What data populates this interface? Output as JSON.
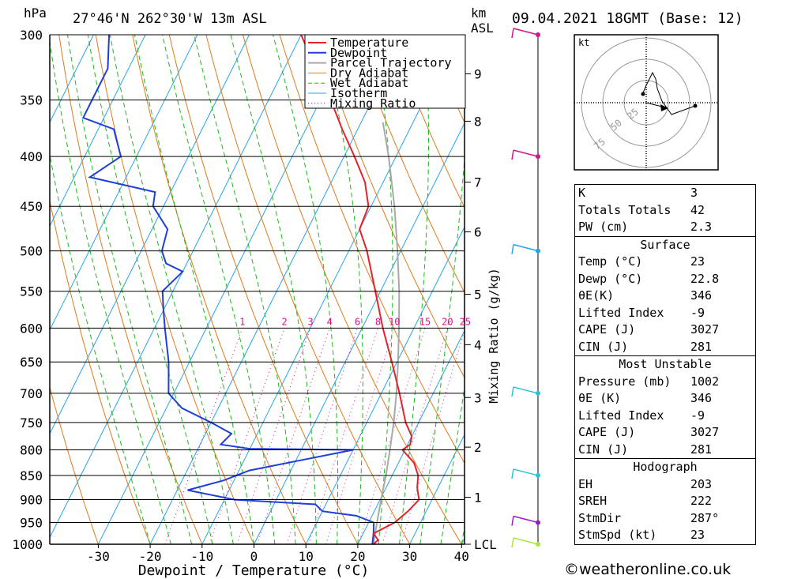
{
  "header": {
    "pressure_unit": "hPa",
    "location": "27°46'N  262°30'W  13m  ASL",
    "km_unit": "km",
    "asl": "ASL",
    "datetime": "09.04.2021  18GMT  (Base: 12)"
  },
  "chart_data": {
    "type": "skew-t",
    "xlabel": "Dewpoint / Temperature (°C)",
    "ylabel": "hPa",
    "y2label": "Mixing Ratio (g/kg)",
    "pressure_levels": [
      300,
      350,
      400,
      450,
      500,
      550,
      600,
      650,
      700,
      750,
      800,
      850,
      900,
      950,
      1000
    ],
    "temp_ticks": [
      -30,
      -20,
      -10,
      0,
      10,
      20,
      30,
      40
    ],
    "km_ticks": [
      {
        "label": "9",
        "p": 329
      },
      {
        "label": "8",
        "p": 368
      },
      {
        "label": "7",
        "p": 425
      },
      {
        "label": "6",
        "p": 478
      },
      {
        "label": "5",
        "p": 554
      },
      {
        "label": "4",
        "p": 624
      },
      {
        "label": "3",
        "p": 707
      },
      {
        "label": "2",
        "p": 795
      },
      {
        "label": "1",
        "p": 895
      },
      {
        "label": "LCL",
        "p": 1000
      }
    ],
    "mixing_ratio_labels": [
      "1",
      "2",
      "3",
      "4",
      "6",
      "8",
      "10",
      "15",
      "20",
      "25"
    ],
    "legend": [
      "Temperature",
      "Dewpoint",
      "Parcel Trajectory",
      "Dry Adiabat",
      "Wet Adiabat",
      "Isotherm",
      "Mixing Ratio"
    ],
    "colors": {
      "temperature": "#e8202a",
      "dewpoint": "#1f3fd8",
      "parcel": "#a9a9a9",
      "dry_adiabat": "#e07a1c",
      "wet_adiabat": "#1eb81e",
      "isotherm": "#26a4e8",
      "mixing_ratio": "#d4148a"
    },
    "temperature": [
      {
        "p": 1000,
        "t": 23
      },
      {
        "p": 990,
        "t": 23.5
      },
      {
        "p": 975,
        "t": 22
      },
      {
        "p": 950,
        "t": 25
      },
      {
        "p": 925,
        "t": 26.5
      },
      {
        "p": 900,
        "t": 27.5
      },
      {
        "p": 875,
        "t": 26
      },
      {
        "p": 850,
        "t": 25
      },
      {
        "p": 825,
        "t": 23
      },
      {
        "p": 800,
        "t": 19.5
      },
      {
        "p": 790,
        "t": 20.5
      },
      {
        "p": 775,
        "t": 20
      },
      {
        "p": 750,
        "t": 17.5
      },
      {
        "p": 700,
        "t": 13.5
      },
      {
        "p": 650,
        "t": 9
      },
      {
        "p": 600,
        "t": 4
      },
      {
        "p": 550,
        "t": -1
      },
      {
        "p": 500,
        "t": -6.5
      },
      {
        "p": 475,
        "t": -10
      },
      {
        "p": 450,
        "t": -10.5
      },
      {
        "p": 425,
        "t": -13.5
      },
      {
        "p": 400,
        "t": -18
      },
      {
        "p": 375,
        "t": -23
      },
      {
        "p": 350,
        "t": -28
      },
      {
        "p": 325,
        "t": -34
      },
      {
        "p": 300,
        "t": -40
      }
    ],
    "dewpoint": [
      {
        "p": 1000,
        "t": 22.8
      },
      {
        "p": 975,
        "t": 22
      },
      {
        "p": 950,
        "t": 21
      },
      {
        "p": 935,
        "t": 17
      },
      {
        "p": 925,
        "t": 10
      },
      {
        "p": 910,
        "t": 8
      },
      {
        "p": 900,
        "t": -8
      },
      {
        "p": 880,
        "t": -18
      },
      {
        "p": 860,
        "t": -12
      },
      {
        "p": 840,
        "t": -8
      },
      {
        "p": 800,
        "t": 10
      },
      {
        "p": 798,
        "t": -10
      },
      {
        "p": 790,
        "t": -16
      },
      {
        "p": 770,
        "t": -15
      },
      {
        "p": 750,
        "t": -20
      },
      {
        "p": 725,
        "t": -27
      },
      {
        "p": 700,
        "t": -31
      },
      {
        "p": 650,
        "t": -34
      },
      {
        "p": 600,
        "t": -38
      },
      {
        "p": 575,
        "t": -40
      },
      {
        "p": 550,
        "t": -42
      },
      {
        "p": 525,
        "t": -40
      },
      {
        "p": 515,
        "t": -44
      },
      {
        "p": 500,
        "t": -46
      },
      {
        "p": 475,
        "t": -47
      },
      {
        "p": 450,
        "t": -52
      },
      {
        "p": 435,
        "t": -53
      },
      {
        "p": 420,
        "t": -67
      },
      {
        "p": 400,
        "t": -63
      },
      {
        "p": 375,
        "t": -67
      },
      {
        "p": 365,
        "t": -74
      },
      {
        "p": 350,
        "t": -74
      },
      {
        "p": 325,
        "t": -74
      },
      {
        "p": 300,
        "t": -77
      }
    ],
    "parcel": [
      {
        "p": 1000,
        "t": 23
      },
      {
        "p": 950,
        "t": 21.6
      },
      {
        "p": 900,
        "t": 20.2
      },
      {
        "p": 850,
        "t": 18.8
      },
      {
        "p": 800,
        "t": 17.1
      },
      {
        "p": 750,
        "t": 15.2
      },
      {
        "p": 700,
        "t": 12.9
      },
      {
        "p": 650,
        "t": 10.2
      },
      {
        "p": 600,
        "t": 7.1
      },
      {
        "p": 550,
        "t": 3.6
      },
      {
        "p": 500,
        "t": -0.6
      },
      {
        "p": 450,
        "t": -5.5
      },
      {
        "p": 400,
        "t": -11.4
      },
      {
        "p": 369,
        "t": -15.8
      }
    ]
  },
  "wind_profile": [
    {
      "p": 300,
      "color": "#d4148a"
    },
    {
      "p": 400,
      "color": "#d4148a"
    },
    {
      "p": 500,
      "color": "#26a4e8"
    },
    {
      "p": 700,
      "color": "#26c4d8"
    },
    {
      "p": 850,
      "color": "#26c4d8"
    },
    {
      "p": 950,
      "color": "#9a1aca"
    },
    {
      "p": 1000,
      "color": "#a6e83a"
    }
  ],
  "hodograph": {
    "unit": "kt",
    "ring_labels": [
      "25",
      "50",
      "75"
    ]
  },
  "indices": {
    "general": [
      {
        "label": "K",
        "value": "3"
      },
      {
        "label": "Totals Totals",
        "value": "42"
      },
      {
        "label": "PW (cm)",
        "value": "2.3"
      }
    ],
    "surface_title": "Surface",
    "surface": [
      {
        "label": "Temp (°C)",
        "value": "23"
      },
      {
        "label": "Dewp (°C)",
        "value": "22.8"
      },
      {
        "label": "θE(K)",
        "value": "346"
      },
      {
        "label": "Lifted Index",
        "value": "-9"
      },
      {
        "label": "CAPE (J)",
        "value": "3027"
      },
      {
        "label": "CIN (J)",
        "value": "281"
      }
    ],
    "unstable_title": "Most Unstable",
    "unstable": [
      {
        "label": "Pressure (mb)",
        "value": "1002"
      },
      {
        "label": "θE (K)",
        "value": "346"
      },
      {
        "label": "Lifted Index",
        "value": "-9"
      },
      {
        "label": "CAPE (J)",
        "value": "3027"
      },
      {
        "label": "CIN (J)",
        "value": "281"
      }
    ],
    "hodo_title": "Hodograph",
    "hodo": [
      {
        "label": "EH",
        "value": "203"
      },
      {
        "label": "SREH",
        "value": "222"
      },
      {
        "label": "StmDir",
        "value": "287°"
      },
      {
        "label": "StmSpd (kt)",
        "value": "23"
      }
    ]
  },
  "footer": {
    "copyright": "©weatheronline.co.uk"
  }
}
